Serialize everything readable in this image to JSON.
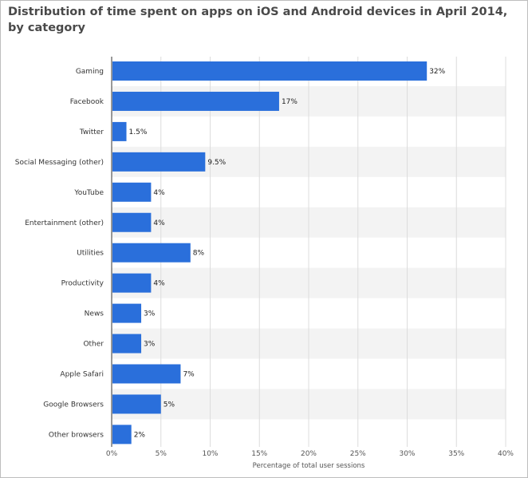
{
  "chart_data": {
    "type": "bar",
    "orientation": "horizontal",
    "title": "Distribution of time spent on apps on iOS and Android devices in April 2014, by category",
    "categories": [
      "Gaming",
      "Facebook",
      "Twitter",
      "Social Messaging (other)",
      "YouTube",
      "Entertainment (other)",
      "Utilities",
      "Productivity",
      "News",
      "Other",
      "Apple Safari",
      "Google Browsers",
      "Other browsers"
    ],
    "values": [
      32,
      17,
      1.5,
      9.5,
      4,
      4,
      8,
      4,
      3,
      3,
      7,
      5,
      2
    ],
    "value_labels": [
      "32%",
      "17%",
      "1.5%",
      "9.5%",
      "4%",
      "4%",
      "8%",
      "4%",
      "3%",
      "3%",
      "7%",
      "5%",
      "2%"
    ],
    "xlim": [
      0,
      40
    ],
    "xticks": [
      0,
      5,
      10,
      15,
      20,
      25,
      30,
      35,
      40
    ],
    "xtick_labels": [
      "0%",
      "5%",
      "10%",
      "15%",
      "20%",
      "25%",
      "30%",
      "35%",
      "40%"
    ],
    "xlabel": "Percentage of total user sessions",
    "ylabel": "",
    "grid": true,
    "bar_color": "#2a6fdb",
    "band_color": "#f3f3f3"
  }
}
